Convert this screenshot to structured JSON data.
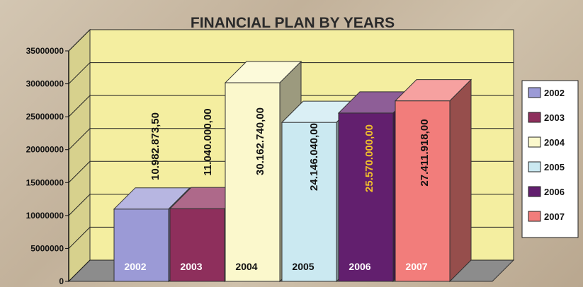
{
  "chart_data": {
    "type": "bar",
    "title": "FINANCIAL PLAN BY YEARS",
    "xlabel": "",
    "ylabel": "",
    "ylim": [
      0,
      35000000
    ],
    "yticks": [
      0,
      5000000,
      10000000,
      15000000,
      20000000,
      25000000,
      30000000,
      35000000
    ],
    "ytick_labels": [
      "0",
      "5000000",
      "10000000",
      "15000000",
      "20000000",
      "25000000",
      "30000000",
      "35000000"
    ],
    "categories": [
      "2002",
      "2003",
      "2004",
      "2005",
      "2006",
      "2007"
    ],
    "values": [
      10982873.5,
      11040000,
      30162740,
      24146040,
      25570000,
      27411918
    ],
    "data_labels": [
      "10.982.873,50",
      "11.040.000,00",
      "30.162.740,00",
      "24.146.040,00",
      "25.570.000,00",
      "27.411.918,00"
    ],
    "grid": true,
    "legend_position": "right",
    "colors": {
      "plot_background": "#f4eea0",
      "bars": [
        "#9b9ad6",
        "#8e2f5c",
        "#fbf8cc",
        "#cbe9f1",
        "#621f6e",
        "#f27d7b"
      ],
      "data_label_colors": [
        "#111111",
        "#111111",
        "#111111",
        "#111111",
        "#f2c12a",
        "#111111"
      ],
      "category_label_colors": [
        "#ffffff",
        "#ffffff",
        "#111111",
        "#111111",
        "#ffffff",
        "#ffffff"
      ]
    }
  }
}
